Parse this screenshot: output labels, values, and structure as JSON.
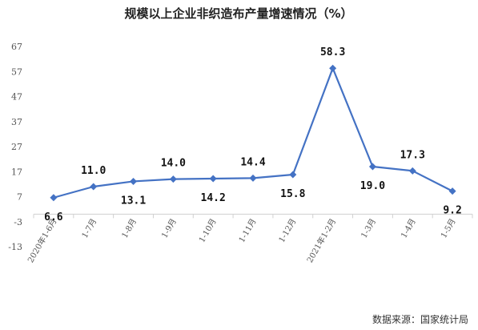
{
  "chart_data": {
    "type": "line",
    "title": "规模以上企业非织造布产量增速情况（%）",
    "categories": [
      "2020年1-6月",
      "1-7月",
      "1-8月",
      "1-9月",
      "1-10月",
      "1-11月",
      "1-12月",
      "2021年1-2月",
      "1-3月",
      "1-4月",
      "1-5月"
    ],
    "series": [
      {
        "values": [
          6.6,
          11.0,
          13.1,
          14.0,
          14.2,
          14.4,
          15.8,
          58.3,
          19.0,
          17.3,
          9.2
        ],
        "labels": [
          "6.6",
          "11.0",
          "13.1",
          "14.0",
          "14.2",
          "14.4",
          "15.8",
          "58.3",
          "19.0",
          "17.3",
          "9.2"
        ],
        "label_position": [
          "below",
          "above",
          "below",
          "above",
          "below",
          "above",
          "below",
          "above",
          "below",
          "above",
          "below"
        ]
      }
    ],
    "yticks": [
      67,
      57,
      47,
      37,
      27,
      17,
      7,
      -3,
      -13
    ],
    "yticks_text": [
      "67",
      "57",
      "47",
      "37",
      "27",
      "17",
      "7",
      "-3",
      "-13"
    ],
    "ylim": [
      -13,
      67
    ],
    "grid": false,
    "line_color": "#4472c4",
    "source_note": "数据来源：国家统计局"
  }
}
